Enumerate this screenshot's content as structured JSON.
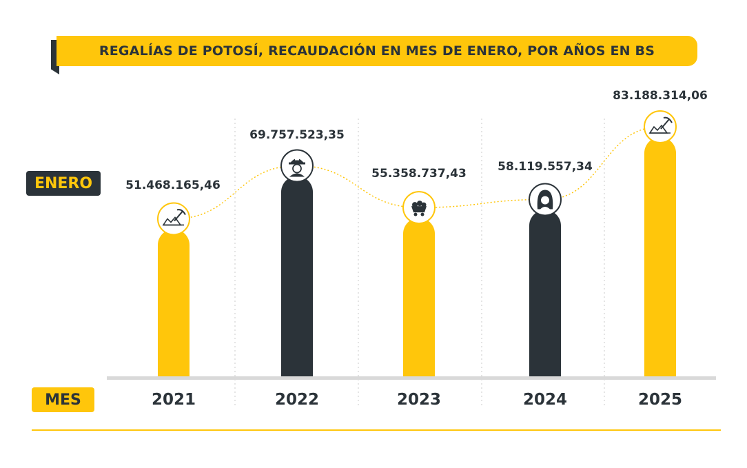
{
  "title": "REGALÍAS DE POTOSÍ, RECAUDACIÓN EN MES DE ENERO, POR AÑOS EN BS",
  "row_label": "ENERO",
  "axis_label": "MES",
  "colors": {
    "yellow": "#ffc60b",
    "dark": "#2b3339",
    "baseline": "#d9d9d9"
  },
  "chart_data": {
    "type": "bar",
    "title": "REGALÍAS DE POTOSÍ, RECAUDACIÓN EN MES DE ENERO, POR AÑOS EN BS",
    "xlabel": "MES",
    "ylabel": "",
    "categories": [
      "2021",
      "2022",
      "2023",
      "2024",
      "2025"
    ],
    "values": [
      51468165.46,
      69757523.35,
      55358737.43,
      58119557.34,
      83188314.06
    ],
    "labels": [
      "51.468.165,46",
      "69.757.523,35",
      "55.358.737,43",
      "58.119.557,34",
      "83.188.314,06"
    ],
    "bar_colors": [
      "#ffc60b",
      "#2b3339",
      "#ffc60b",
      "#2b3339",
      "#ffc60b"
    ],
    "icons": [
      "pickaxe-mountain-icon",
      "miner-helmet-icon",
      "mine-cart-icon",
      "miner-long-hair-icon",
      "pickaxe-mountain-icon"
    ],
    "grid": false,
    "legend": "none",
    "connector_line": "dotted"
  }
}
